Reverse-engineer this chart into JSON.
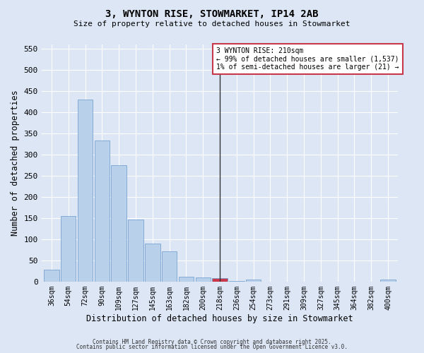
{
  "title": "3, WYNTON RISE, STOWMARKET, IP14 2AB",
  "subtitle": "Size of property relative to detached houses in Stowmarket",
  "xlabel": "Distribution of detached houses by size in Stowmarket",
  "ylabel": "Number of detached properties",
  "bar_labels": [
    "36sqm",
    "54sqm",
    "72sqm",
    "90sqm",
    "109sqm",
    "127sqm",
    "145sqm",
    "163sqm",
    "182sqm",
    "200sqm",
    "218sqm",
    "236sqm",
    "254sqm",
    "273sqm",
    "291sqm",
    "309sqm",
    "327sqm",
    "345sqm",
    "364sqm",
    "382sqm",
    "400sqm"
  ],
  "bar_values": [
    28,
    155,
    430,
    333,
    275,
    147,
    90,
    71,
    11,
    10,
    8,
    2,
    5,
    0,
    0,
    0,
    0,
    0,
    0,
    0,
    5
  ],
  "bar_color_normal": "#b8d0ea",
  "bar_color_highlight": "#c8374a",
  "bar_edge_color": "#6899cc",
  "highlight_index": 10,
  "vline_x": 10,
  "annotation_text": "3 WYNTON RISE: 210sqm\n← 99% of detached houses are smaller (1,537)\n1% of semi-detached houses are larger (21) →",
  "annotation_box_color": "#ffffff",
  "annotation_box_edge": "#c8374a",
  "ylim": [
    0,
    560
  ],
  "yticks": [
    0,
    50,
    100,
    150,
    200,
    250,
    300,
    350,
    400,
    450,
    500,
    550
  ],
  "background_color": "#dce6f5",
  "footer1": "Contains HM Land Registry data © Crown copyright and database right 2025.",
  "footer2": "Contains public sector information licensed under the Open Government Licence v3.0."
}
